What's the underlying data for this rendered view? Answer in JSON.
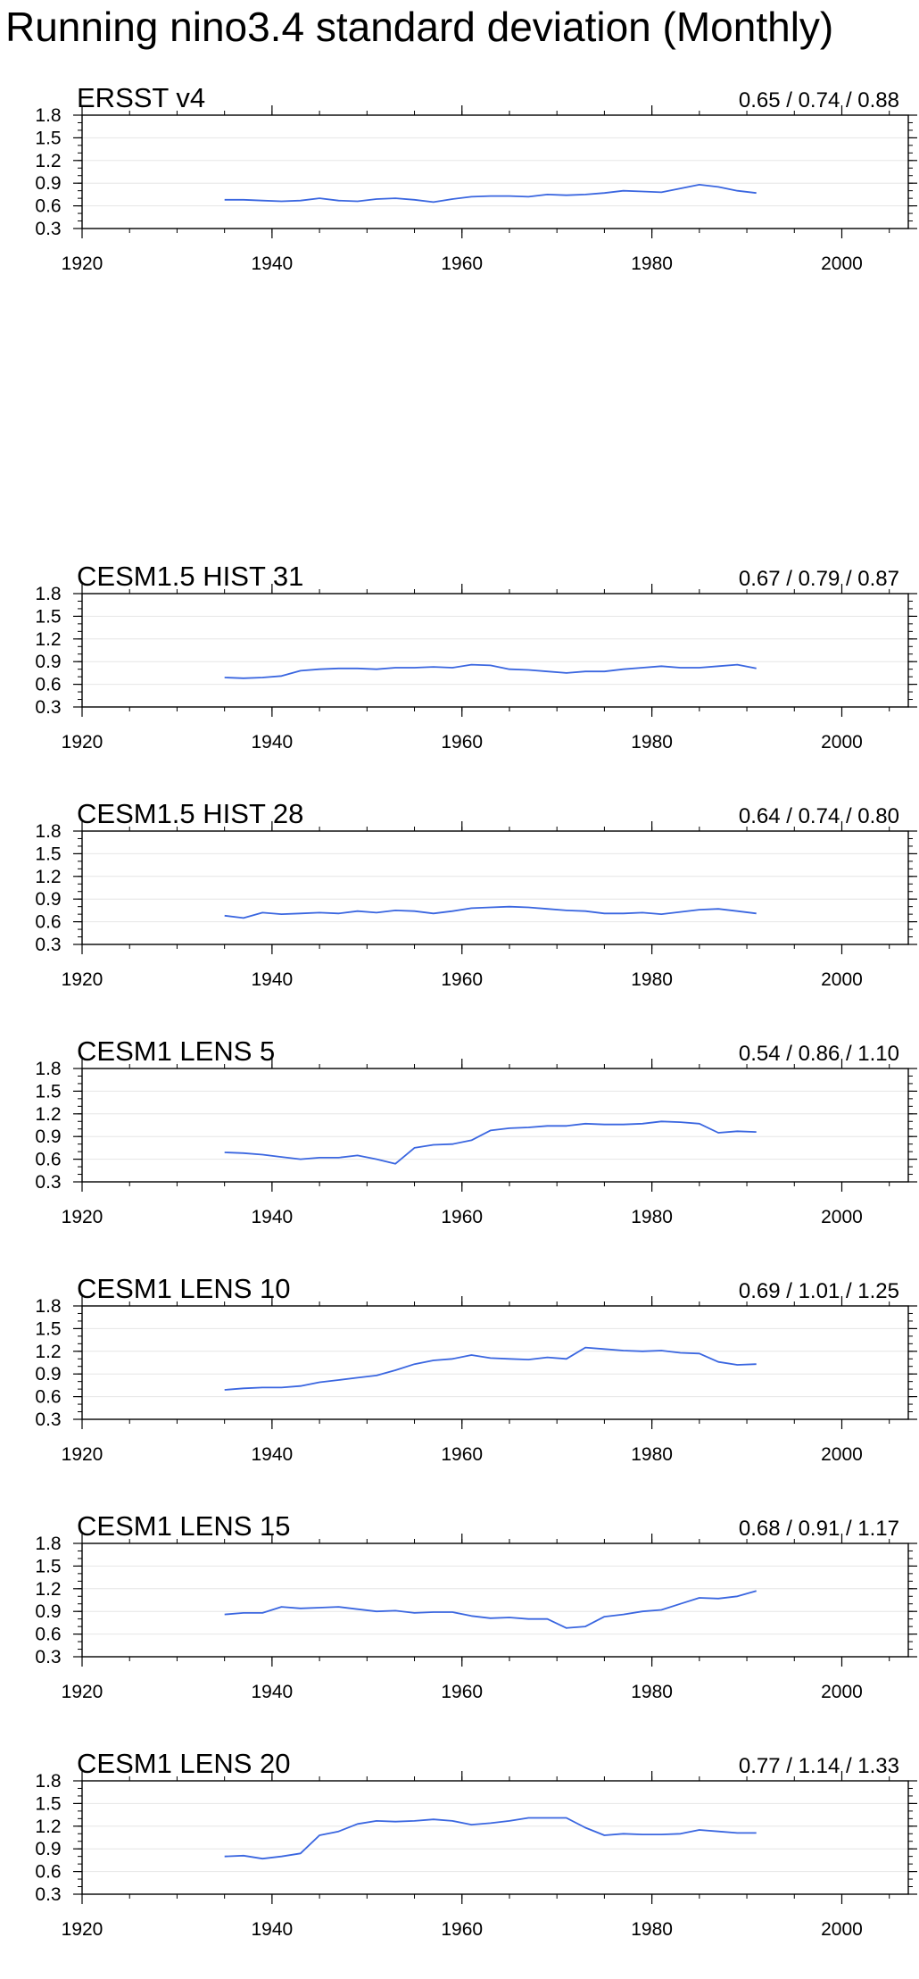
{
  "title": "Running nino3.4 standard deviation (Monthly)",
  "colors": {
    "line": "#3a66e0",
    "axis": "#000000",
    "grid": "#e6e6e6"
  },
  "chart_data": [
    {
      "type": "line",
      "name": "ERSST v4",
      "stats": "0.65 / 0.74 / 0.88",
      "xlim": [
        1920,
        2007
      ],
      "ylim": [
        0.3,
        1.8
      ],
      "xticks": [
        "1920",
        "1940",
        "1960",
        "1980",
        "2000"
      ],
      "yticks": [
        "0.3",
        "0.6",
        "0.9",
        "1.2",
        "1.5",
        "1.8"
      ],
      "x": [
        1935,
        1937,
        1939,
        1941,
        1943,
        1945,
        1947,
        1949,
        1951,
        1953,
        1955,
        1957,
        1959,
        1961,
        1963,
        1965,
        1967,
        1969,
        1971,
        1973,
        1975,
        1977,
        1979,
        1981,
        1983,
        1985,
        1987,
        1989,
        1991
      ],
      "y": [
        0.68,
        0.68,
        0.67,
        0.66,
        0.67,
        0.7,
        0.67,
        0.66,
        0.69,
        0.7,
        0.68,
        0.65,
        0.69,
        0.72,
        0.73,
        0.73,
        0.72,
        0.75,
        0.74,
        0.75,
        0.77,
        0.8,
        0.79,
        0.78,
        0.83,
        0.88,
        0.85,
        0.8,
        0.77
      ]
    },
    {
      "type": "line",
      "name": "CESM1.5 HIST 31",
      "stats": "0.67 / 0.79 / 0.87",
      "xlim": [
        1920,
        2007
      ],
      "ylim": [
        0.3,
        1.8
      ],
      "xticks": [
        "1920",
        "1940",
        "1960",
        "1980",
        "2000"
      ],
      "yticks": [
        "0.3",
        "0.6",
        "0.9",
        "1.2",
        "1.5",
        "1.8"
      ],
      "x": [
        1935,
        1937,
        1939,
        1941,
        1943,
        1945,
        1947,
        1949,
        1951,
        1953,
        1955,
        1957,
        1959,
        1961,
        1963,
        1965,
        1967,
        1969,
        1971,
        1973,
        1975,
        1977,
        1979,
        1981,
        1983,
        1985,
        1987,
        1989,
        1991
      ],
      "y": [
        0.69,
        0.68,
        0.69,
        0.71,
        0.78,
        0.8,
        0.81,
        0.81,
        0.8,
        0.82,
        0.82,
        0.83,
        0.82,
        0.86,
        0.85,
        0.8,
        0.79,
        0.77,
        0.75,
        0.77,
        0.77,
        0.8,
        0.82,
        0.84,
        0.82,
        0.82,
        0.84,
        0.86,
        0.81
      ]
    },
    {
      "type": "line",
      "name": "CESM1.5 HIST 28",
      "stats": "0.64 / 0.74 / 0.80",
      "xlim": [
        1920,
        2007
      ],
      "ylim": [
        0.3,
        1.8
      ],
      "xticks": [
        "1920",
        "1940",
        "1960",
        "1980",
        "2000"
      ],
      "yticks": [
        "0.3",
        "0.6",
        "0.9",
        "1.2",
        "1.5",
        "1.8"
      ],
      "x": [
        1935,
        1937,
        1939,
        1941,
        1943,
        1945,
        1947,
        1949,
        1951,
        1953,
        1955,
        1957,
        1959,
        1961,
        1963,
        1965,
        1967,
        1969,
        1971,
        1973,
        1975,
        1977,
        1979,
        1981,
        1983,
        1985,
        1987,
        1989,
        1991
      ],
      "y": [
        0.68,
        0.65,
        0.72,
        0.7,
        0.71,
        0.72,
        0.71,
        0.74,
        0.72,
        0.75,
        0.74,
        0.71,
        0.74,
        0.78,
        0.79,
        0.8,
        0.79,
        0.77,
        0.75,
        0.74,
        0.71,
        0.71,
        0.72,
        0.7,
        0.73,
        0.76,
        0.77,
        0.74,
        0.71
      ]
    },
    {
      "type": "line",
      "name": "CESM1 LENS 5",
      "stats": "0.54 / 0.86 / 1.10",
      "xlim": [
        1920,
        2007
      ],
      "ylim": [
        0.3,
        1.8
      ],
      "xticks": [
        "1920",
        "1940",
        "1960",
        "1980",
        "2000"
      ],
      "yticks": [
        "0.3",
        "0.6",
        "0.9",
        "1.2",
        "1.5",
        "1.8"
      ],
      "x": [
        1935,
        1937,
        1939,
        1941,
        1943,
        1945,
        1947,
        1949,
        1951,
        1953,
        1955,
        1957,
        1959,
        1961,
        1963,
        1965,
        1967,
        1969,
        1971,
        1973,
        1975,
        1977,
        1979,
        1981,
        1983,
        1985,
        1987,
        1989,
        1991
      ],
      "y": [
        0.69,
        0.68,
        0.66,
        0.63,
        0.6,
        0.62,
        0.62,
        0.65,
        0.6,
        0.54,
        0.75,
        0.79,
        0.8,
        0.85,
        0.98,
        1.01,
        1.02,
        1.04,
        1.04,
        1.07,
        1.06,
        1.06,
        1.07,
        1.1,
        1.09,
        1.07,
        0.95,
        0.97,
        0.96
      ]
    },
    {
      "type": "line",
      "name": "CESM1 LENS 10",
      "stats": "0.69 / 1.01 / 1.25",
      "xlim": [
        1920,
        2007
      ],
      "ylim": [
        0.3,
        1.8
      ],
      "xticks": [
        "1920",
        "1940",
        "1960",
        "1980",
        "2000"
      ],
      "yticks": [
        "0.3",
        "0.6",
        "0.9",
        "1.2",
        "1.5",
        "1.8"
      ],
      "x": [
        1935,
        1937,
        1939,
        1941,
        1943,
        1945,
        1947,
        1949,
        1951,
        1953,
        1955,
        1957,
        1959,
        1961,
        1963,
        1965,
        1967,
        1969,
        1971,
        1973,
        1975,
        1977,
        1979,
        1981,
        1983,
        1985,
        1987,
        1989,
        1991
      ],
      "y": [
        0.69,
        0.71,
        0.72,
        0.72,
        0.74,
        0.79,
        0.82,
        0.85,
        0.88,
        0.95,
        1.03,
        1.08,
        1.1,
        1.15,
        1.11,
        1.1,
        1.09,
        1.12,
        1.1,
        1.25,
        1.23,
        1.21,
        1.2,
        1.21,
        1.18,
        1.17,
        1.06,
        1.02,
        1.03
      ]
    },
    {
      "type": "line",
      "name": "CESM1 LENS 15",
      "stats": "0.68 / 0.91 / 1.17",
      "xlim": [
        1920,
        2007
      ],
      "ylim": [
        0.3,
        1.8
      ],
      "xticks": [
        "1920",
        "1940",
        "1960",
        "1980",
        "2000"
      ],
      "yticks": [
        "0.3",
        "0.6",
        "0.9",
        "1.2",
        "1.5",
        "1.8"
      ],
      "x": [
        1935,
        1937,
        1939,
        1941,
        1943,
        1945,
        1947,
        1949,
        1951,
        1953,
        1955,
        1957,
        1959,
        1961,
        1963,
        1965,
        1967,
        1969,
        1971,
        1973,
        1975,
        1977,
        1979,
        1981,
        1983,
        1985,
        1987,
        1989,
        1991
      ],
      "y": [
        0.86,
        0.88,
        0.88,
        0.96,
        0.94,
        0.95,
        0.96,
        0.93,
        0.9,
        0.91,
        0.88,
        0.89,
        0.89,
        0.84,
        0.81,
        0.82,
        0.8,
        0.8,
        0.68,
        0.7,
        0.83,
        0.86,
        0.9,
        0.92,
        1.0,
        1.08,
        1.07,
        1.1,
        1.17
      ]
    },
    {
      "type": "line",
      "name": "CESM1 LENS 20",
      "stats": "0.77 / 1.14 / 1.33",
      "xlim": [
        1920,
        2007
      ],
      "ylim": [
        0.3,
        1.8
      ],
      "xticks": [
        "1920",
        "1940",
        "1960",
        "1980",
        "2000"
      ],
      "yticks": [
        "0.3",
        "0.6",
        "0.9",
        "1.2",
        "1.5",
        "1.8"
      ],
      "x": [
        1935,
        1937,
        1939,
        1941,
        1943,
        1945,
        1947,
        1949,
        1951,
        1953,
        1955,
        1957,
        1959,
        1961,
        1963,
        1965,
        1967,
        1969,
        1971,
        1973,
        1975,
        1977,
        1979,
        1981,
        1983,
        1985,
        1987,
        1989,
        1991
      ],
      "y": [
        0.8,
        0.81,
        0.77,
        0.8,
        0.84,
        1.08,
        1.13,
        1.23,
        1.27,
        1.26,
        1.27,
        1.29,
        1.27,
        1.22,
        1.24,
        1.27,
        1.31,
        1.31,
        1.31,
        1.18,
        1.08,
        1.1,
        1.09,
        1.09,
        1.1,
        1.15,
        1.13,
        1.11,
        1.11
      ]
    }
  ]
}
